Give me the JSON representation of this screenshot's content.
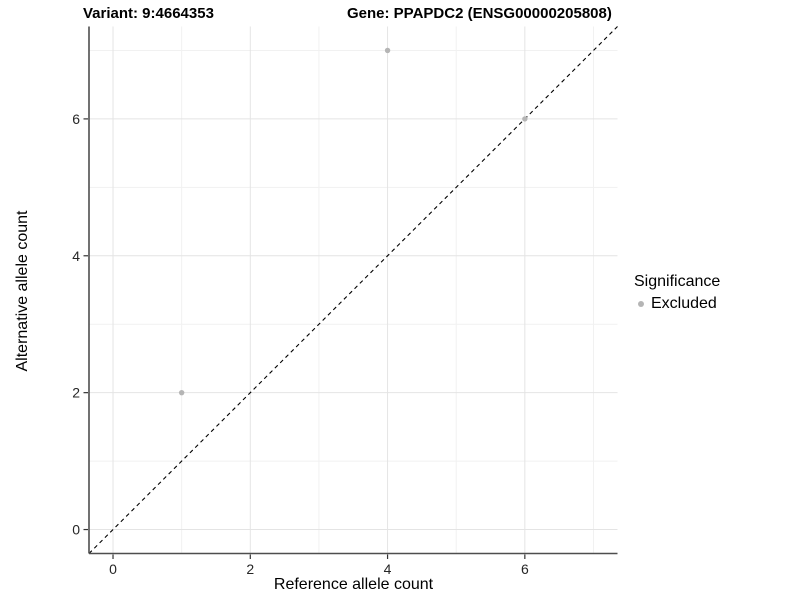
{
  "title": {
    "variant": "Variant: 9:4664353",
    "gene": "Gene: PPAPDC2 (ENSG00000205808)"
  },
  "axes": {
    "x_label": "Reference allele count",
    "y_label": "Alternative allele count"
  },
  "legend": {
    "title": "Significance",
    "items": [
      {
        "label": "Excluded",
        "color": "#b5b5b5"
      }
    ]
  },
  "chart_data": {
    "type": "scatter",
    "title": "Variant: 9:4664353   Gene: PPAPDC2 (ENSG00000205808)",
    "xlabel": "Reference allele count",
    "ylabel": "Alternative allele count",
    "xlim": [
      -0.35,
      7.35
    ],
    "ylim": [
      -0.35,
      7.35
    ],
    "x_major_ticks": [
      0,
      2,
      4,
      6
    ],
    "y_major_ticks": [
      0,
      2,
      4,
      6
    ],
    "x_minor_ticks": [
      1,
      3,
      5,
      7
    ],
    "y_minor_ticks": [
      1,
      3,
      5,
      7
    ],
    "grid": true,
    "legend_position": "right",
    "series": [
      {
        "name": "Excluded",
        "color": "#b5b5b5",
        "points": [
          {
            "x": 1,
            "y": 2
          },
          {
            "x": 4,
            "y": 7
          },
          {
            "x": 6,
            "y": 6
          }
        ]
      }
    ],
    "reference_line": {
      "type": "identity",
      "equation": "y = x",
      "style": "dashed",
      "color": "#000000"
    }
  },
  "style": {
    "major_grid_color": "#e4e4e4",
    "minor_grid_color": "#f1f1f1",
    "axis_line_color": "#4e4e4e",
    "tick_color": "#333333",
    "tick_label_color": "#262626",
    "point_color": "#b5b5b5",
    "background_color": "#ffffff"
  }
}
